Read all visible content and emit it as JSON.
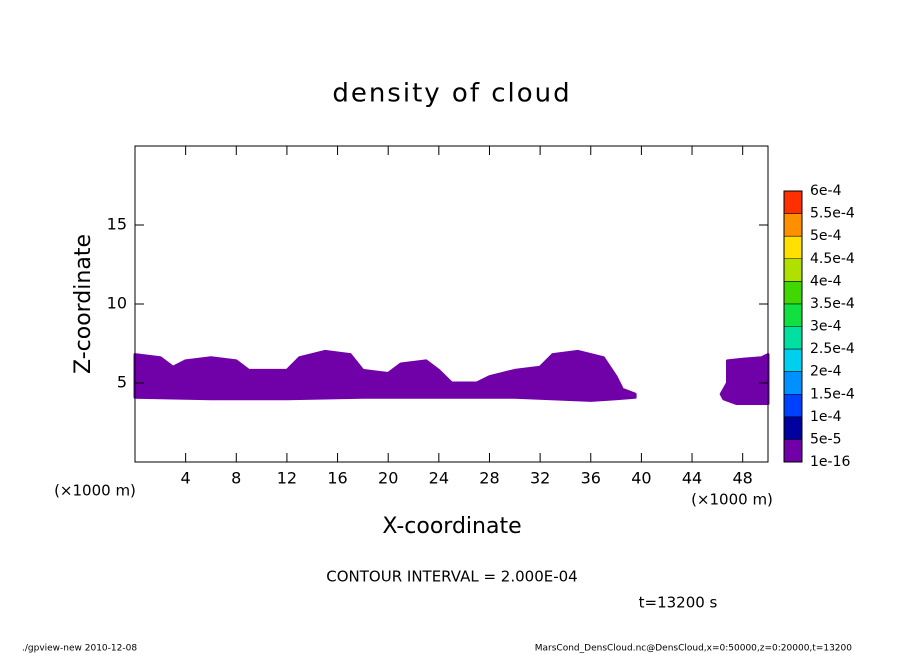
{
  "chart_data": {
    "type": "contour",
    "title": "density of cloud",
    "xlabel": "X-coordinate",
    "ylabel": "Z-coordinate",
    "xlabel_unit": "(×1000 m)",
    "ylabel_unit": "(×1000 m)",
    "xlim": [
      0,
      50
    ],
    "ylim": [
      0,
      20
    ],
    "xticks": [
      4,
      8,
      12,
      16,
      20,
      24,
      28,
      32,
      36,
      40,
      44,
      48
    ],
    "yticks": [
      5,
      10,
      15
    ],
    "regions": [
      {
        "color": "#7000a8",
        "x": [
          0,
          2,
          3,
          4,
          6,
          8,
          9,
          12,
          13,
          15,
          17,
          18,
          20,
          21,
          23,
          24,
          25,
          27,
          28,
          30,
          32,
          33,
          35,
          37,
          38,
          38.5,
          39.5,
          39.5,
          38,
          36,
          30,
          24,
          18,
          12,
          6,
          0
        ],
        "z": [
          6.8,
          6.6,
          6.0,
          6.4,
          6.6,
          6.4,
          5.8,
          5.8,
          6.6,
          7.0,
          6.8,
          5.8,
          5.6,
          6.2,
          6.4,
          5.8,
          5.0,
          5.0,
          5.4,
          5.8,
          6.0,
          6.8,
          7.0,
          6.6,
          5.4,
          4.6,
          4.3,
          4.1,
          4.0,
          3.9,
          4.1,
          4.1,
          4.1,
          4.0,
          4.0,
          4.1
        ]
      },
      {
        "color": "#7000a8",
        "x": [
          46.8,
          48,
          49.5,
          50,
          50,
          47.5,
          46.5,
          46.3,
          46.8
        ],
        "z": [
          6.4,
          6.5,
          6.6,
          6.8,
          3.7,
          3.7,
          4.0,
          4.3,
          5.0
        ]
      }
    ],
    "colorbar": {
      "levels": [
        {
          "value": 1e-16,
          "label": "1e-16"
        },
        {
          "value": 5e-05,
          "label": "5e-5"
        },
        {
          "value": 0.0001,
          "label": "1e-4"
        },
        {
          "value": 0.00015,
          "label": "1.5e-4"
        },
        {
          "value": 0.0002,
          "label": "2e-4"
        },
        {
          "value": 0.00025,
          "label": "2.5e-4"
        },
        {
          "value": 0.0003,
          "label": "3e-4"
        },
        {
          "value": 0.00035,
          "label": "3.5e-4"
        },
        {
          "value": 0.0004,
          "label": "4e-4"
        },
        {
          "value": 0.00045,
          "label": "4.5e-4"
        },
        {
          "value": 0.0005,
          "label": "5e-4"
        },
        {
          "value": 0.00055,
          "label": "5.5e-4"
        },
        {
          "value": 0.0006,
          "label": "6e-4"
        }
      ],
      "colors": [
        "#7000a8",
        "#0000a0",
        "#0040ff",
        "#0090ff",
        "#00d0f0",
        "#00e0a0",
        "#10e040",
        "#40d800",
        "#b0e000",
        "#ffe000",
        "#ff9000",
        "#ff3000"
      ]
    },
    "contour_interval": "CONTOUR INTERVAL = 2.000E-04",
    "time_label": "t=13200 s",
    "footer_left": "./gpview-new   2010-12-08",
    "footer_right": "MarsCond_DensCloud.nc@DensCloud,x=0:50000,z=0:20000,t=13200"
  }
}
